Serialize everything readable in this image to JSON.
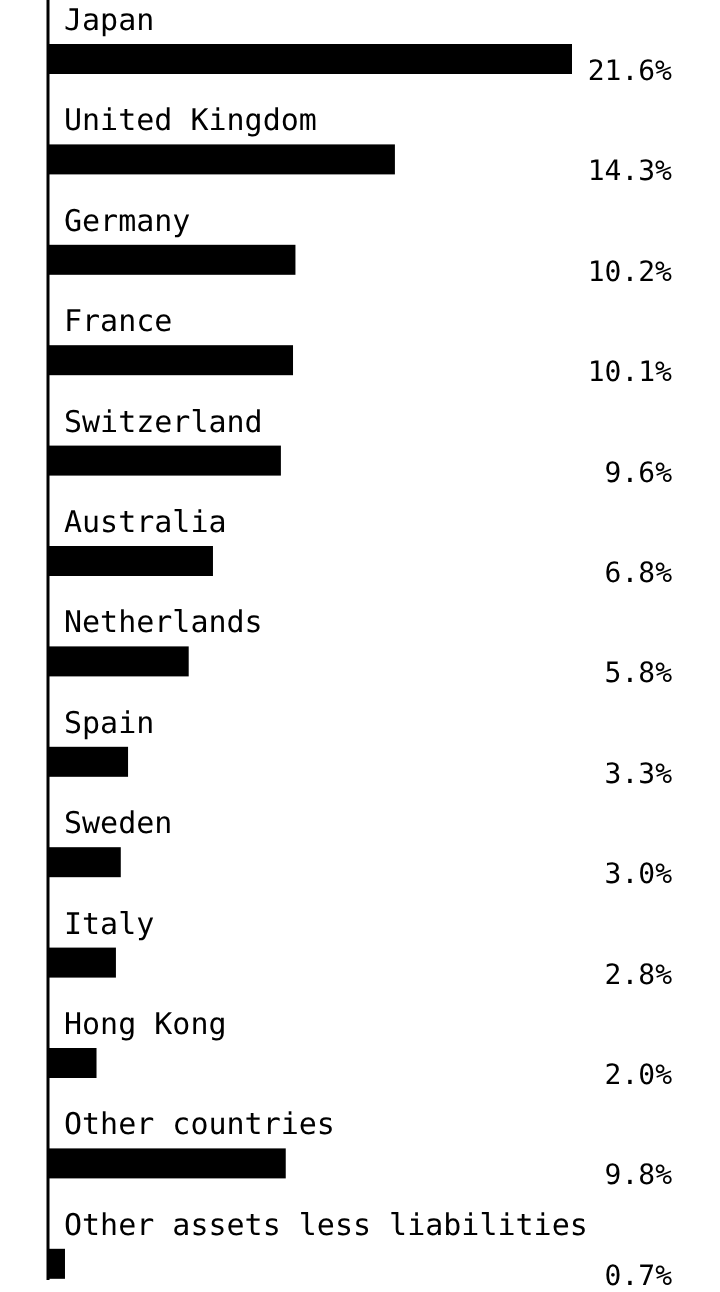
{
  "chart_data": {
    "type": "bar",
    "orientation": "horizontal",
    "categories": [
      "Japan",
      "United Kingdom",
      "Germany",
      "France",
      "Switzerland",
      "Australia",
      "Netherlands",
      "Spain",
      "Sweden",
      "Italy",
      "Hong Kong",
      "Other countries",
      "Other assets less liabilities"
    ],
    "values": [
      21.6,
      14.3,
      10.2,
      10.1,
      9.6,
      6.8,
      5.8,
      3.3,
      3.0,
      2.8,
      2.0,
      9.8,
      0.7
    ],
    "value_labels": [
      "21.6%",
      "14.3%",
      "10.2%",
      "10.1%",
      "9.6%",
      "6.8%",
      "5.8%",
      "3.3%",
      "3.0%",
      "2.8%",
      "2.0%",
      "9.8%",
      "0.7%"
    ],
    "color": "#000000"
  }
}
